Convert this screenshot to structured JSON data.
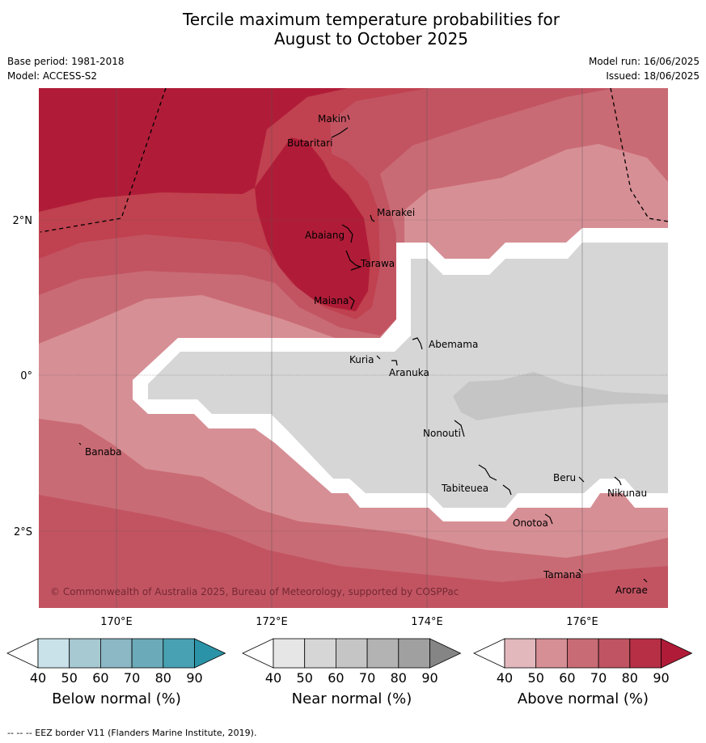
{
  "title_line1": "Tercile maximum temperature probabilities for",
  "title_line2": "August to October 2025",
  "meta": {
    "base_period": "Base period: 1981-2018",
    "model": "Model: ACCESS-S2",
    "model_run": "Model run: 16/06/2025",
    "issued": "Issued: 18/06/2025"
  },
  "copyright": "© Commonwealth of Australia 2025, Bureau of Meteorology, supported by COSPPac",
  "axes": {
    "lon_ticks": [
      "170°E",
      "172°E",
      "174°E",
      "176°E"
    ],
    "lat_ticks": [
      "2°N",
      "0°",
      "2°S"
    ]
  },
  "islands": [
    "Makin",
    "Butaritari",
    "Marakei",
    "Abaiang",
    "Tarawa",
    "Maiana",
    "Abemama",
    "Kuria",
    "Aranuka",
    "Banaba",
    "Nonouti",
    "Beru",
    "Nikunau",
    "Tabiteuea",
    "Onotoa",
    "Tamana",
    "Arorae"
  ],
  "colorbars": [
    {
      "label": "Below normal (%)",
      "ticks": [
        "40",
        "50",
        "60",
        "70",
        "80",
        "90"
      ],
      "colors": [
        "#ffffff",
        "#c9e2ea",
        "#a6c9d2",
        "#8bb8c4",
        "#6aaab9",
        "#48a1b2",
        "#2b93a8"
      ]
    },
    {
      "label": "Near normal (%)",
      "ticks": [
        "40",
        "50",
        "60",
        "70",
        "80",
        "90"
      ],
      "colors": [
        "#ffffff",
        "#e6e6e6",
        "#d6d6d6",
        "#c5c5c5",
        "#b3b3b3",
        "#a0a0a0",
        "#858585"
      ]
    },
    {
      "label": "Above normal (%)",
      "ticks": [
        "40",
        "50",
        "60",
        "70",
        "80",
        "90"
      ],
      "colors": [
        "#ffffff",
        "#e2b8bd",
        "#d68f95",
        "#c96b74",
        "#c05462",
        "#b72f45",
        "#b01c38"
      ]
    }
  ],
  "footnote": "--  --  -- EEZ border V11 (Flanders Marine Institute, 2019)."
}
